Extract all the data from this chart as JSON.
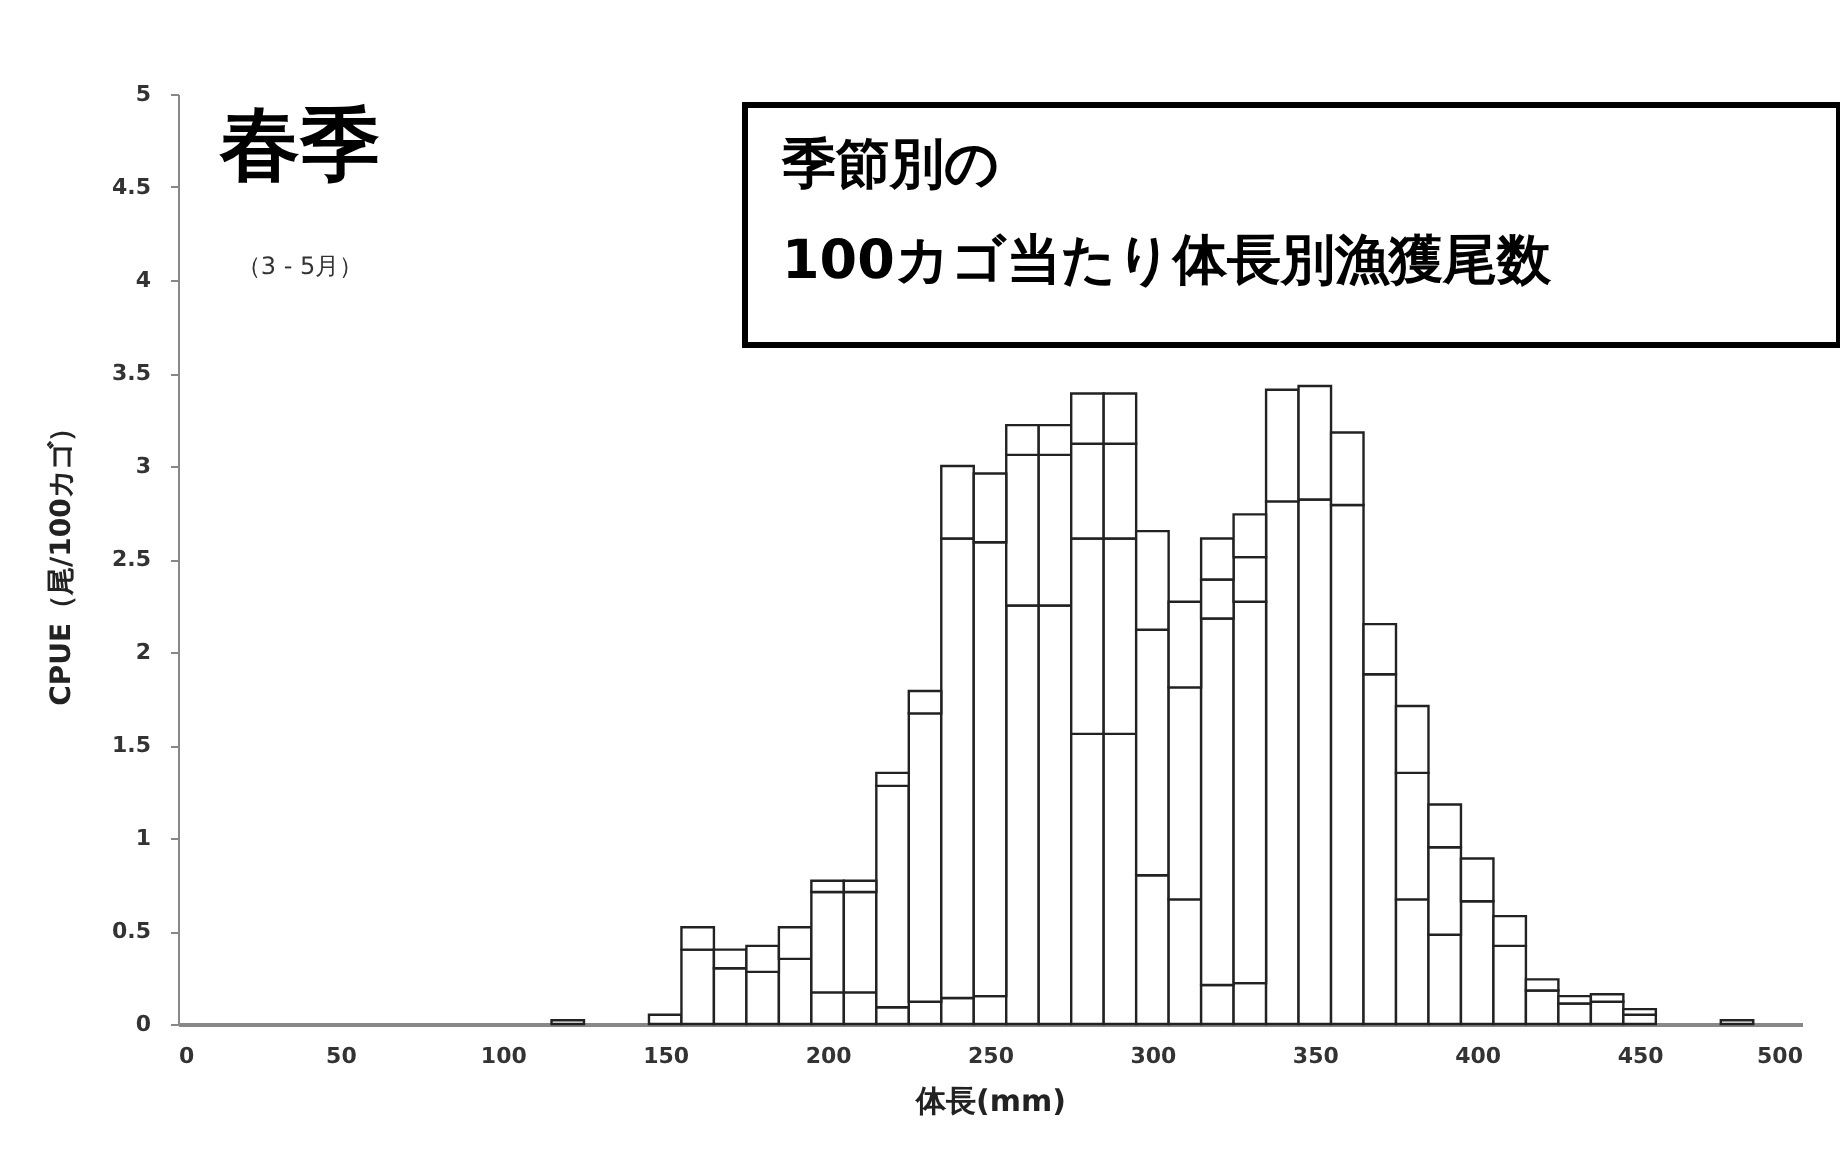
{
  "chart_data": {
    "type": "bar",
    "title": "季節別の\n100カゴ当たり体長別漁獲尾数",
    "subtitle": "春季",
    "annotations": [
      "（3 - 5月）"
    ],
    "xlabel": "体長(mm)",
    "ylabel": "CPUE（尾/100カゴ）",
    "stacked": true,
    "x": [
      120,
      130,
      140,
      150,
      160,
      170,
      180,
      190,
      200,
      210,
      220,
      230,
      240,
      250,
      260,
      270,
      280,
      290,
      300,
      310,
      320,
      330,
      340,
      350,
      360,
      370,
      380,
      390,
      400,
      410,
      420,
      430,
      440,
      450,
      460,
      470,
      480
    ],
    "series": [
      {
        "color": "#ffffff",
        "values": [
          0.02,
          null,
          null,
          0.05,
          0.4,
          0.3,
          0.28,
          0.35,
          0.17,
          0.17,
          0.09,
          0.12,
          0.14,
          0.15,
          2.25,
          2.25,
          1.56,
          1.56,
          0.8,
          0.67,
          0.21,
          0.22,
          2.81,
          2.82,
          2.79,
          1.88,
          0.67,
          0.48,
          0.66,
          0.42,
          0.18,
          0.11,
          0.12,
          0.05,
          null,
          null,
          0.02
        ]
      },
      {
        "color": "#ffffff",
        "values": [
          null,
          null,
          null,
          null,
          0.12,
          0.1,
          0.14,
          0.17,
          0.54,
          0.54,
          1.19,
          1.55,
          2.47,
          2.44,
          0.81,
          0.81,
          1.05,
          1.05,
          1.32,
          1.14,
          1.97,
          2.05,
          0.6,
          0.61,
          0.39,
          0.27,
          0.68,
          0.47,
          0.23,
          0.16,
          0.06,
          0.04,
          0.04,
          0.03,
          null,
          null,
          null
        ]
      },
      {
        "color": "#ffffff",
        "values": [
          null,
          null,
          null,
          null,
          null,
          null,
          null,
          null,
          0.06,
          0.06,
          0.07,
          0.12,
          0.39,
          0.37,
          0.16,
          0.16,
          0.51,
          0.51,
          0.53,
          0.46,
          0.21,
          0.24,
          null,
          null,
          null,
          null,
          0.36,
          0.23,
          null,
          null,
          null,
          null,
          null,
          null,
          null,
          null,
          null
        ]
      },
      {
        "color": "#ffffff",
        "values": [
          null,
          null,
          null,
          null,
          null,
          null,
          null,
          null,
          null,
          null,
          null,
          null,
          null,
          null,
          null,
          null,
          0.27,
          0.27,
          null,
          null,
          0.22,
          0.23,
          null,
          null,
          null,
          null,
          null,
          null,
          null,
          null,
          null,
          null,
          null,
          null,
          null,
          null,
          null
        ]
      }
    ],
    "xlim": [
      0,
      500
    ],
    "xticks": [
      0,
      50,
      100,
      150,
      200,
      250,
      300,
      350,
      400,
      450,
      500
    ],
    "ylim": [
      0,
      5
    ],
    "yticks": [
      0,
      0.5,
      1,
      1.5,
      2,
      2.5,
      3,
      3.5,
      4,
      4.5,
      5
    ]
  }
}
